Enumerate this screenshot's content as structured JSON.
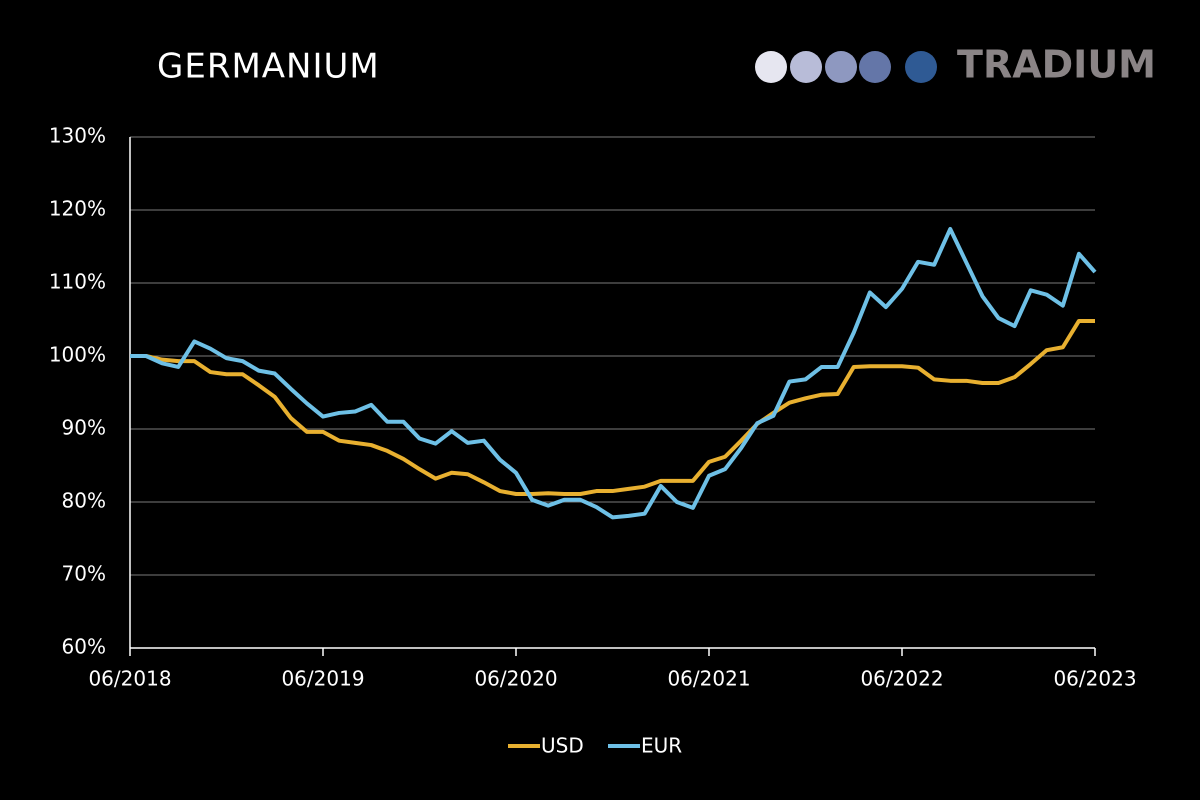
{
  "chart_data": {
    "type": "line",
    "title": "GERMANIUM",
    "brand": "TRADIUM",
    "categories": [
      "06/2018",
      null,
      null,
      null,
      null,
      null,
      null,
      null,
      null,
      null,
      null,
      null,
      "06/2019",
      null,
      null,
      null,
      null,
      null,
      null,
      null,
      null,
      null,
      null,
      null,
      "06/2020",
      null,
      null,
      null,
      null,
      null,
      null,
      null,
      null,
      null,
      null,
      null,
      "06/2021",
      null,
      null,
      null,
      null,
      null,
      null,
      null,
      null,
      null,
      null,
      null,
      "06/2022",
      null,
      null,
      null,
      null,
      null,
      null,
      null,
      null,
      null,
      null,
      null,
      "06/2023"
    ],
    "series": [
      {
        "name": "USD",
        "color": "#e8b030",
        "values": [
          100,
          100,
          99.5,
          99.3,
          99.3,
          97.8,
          97.5,
          97.5,
          96,
          94.4,
          91.5,
          89.6,
          89.6,
          88.4,
          88.1,
          87.8,
          87,
          85.9,
          84.5,
          83.2,
          84,
          83.8,
          82.7,
          81.5,
          81.1,
          81.1,
          81.2,
          81.1,
          81.1,
          81.5,
          81.5,
          81.8,
          82.1,
          82.9,
          82.9,
          82.9,
          85.5,
          86.2,
          88.4,
          90.7,
          92.2,
          93.6,
          94.2,
          94.7,
          94.8,
          98.5,
          98.6,
          98.6,
          98.6,
          98.4,
          96.8,
          96.6,
          96.6,
          96.3,
          96.3,
          97.1,
          98.9,
          100.8,
          101.2,
          104.8,
          104.8
        ]
      },
      {
        "name": "EUR",
        "color": "#6ec0e6",
        "values": [
          100,
          100,
          99,
          98.5,
          102,
          101,
          99.7,
          99.3,
          98,
          97.6,
          95.5,
          93.5,
          91.7,
          92.2,
          92.4,
          93.3,
          91,
          91,
          88.7,
          88,
          89.7,
          88.1,
          88.4,
          85.8,
          84,
          80.3,
          79.5,
          80.3,
          80.3,
          79.3,
          77.9,
          78.1,
          78.4,
          82.2,
          80,
          79.2,
          83.6,
          84.5,
          87.4,
          90.8,
          91.8,
          96.5,
          96.8,
          98.5,
          98.5,
          103.2,
          108.7,
          106.7,
          109.2,
          112.9,
          112.5,
          117.4,
          112.8,
          108.2,
          105.2,
          104.1,
          109,
          108.4,
          106.9,
          114,
          111.5
        ]
      }
    ],
    "ylim": [
      60,
      130
    ],
    "yticks": [
      {
        "value": 60,
        "label": "60%"
      },
      {
        "value": 70,
        "label": "70%"
      },
      {
        "value": 80,
        "label": "80%"
      },
      {
        "value": 90,
        "label": "90%"
      },
      {
        "value": 100,
        "label": "100%"
      },
      {
        "value": 110,
        "label": "110%"
      },
      {
        "value": 120,
        "label": "120%"
      },
      {
        "value": 130,
        "label": "130%"
      }
    ],
    "grid": true,
    "legend": "bottom"
  }
}
